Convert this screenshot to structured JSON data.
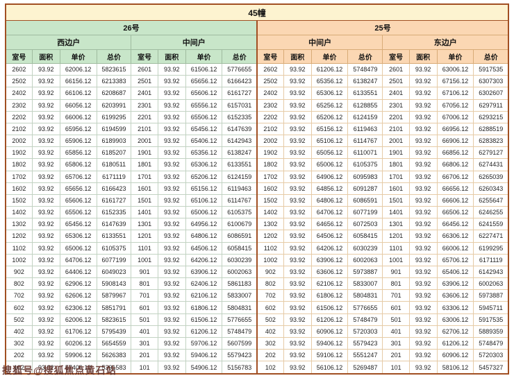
{
  "title": "45幢",
  "sections": [
    {
      "label": "26号",
      "units": [
        "西边户",
        "中间户"
      ]
    },
    {
      "label": "25号",
      "units": [
        "中间户",
        "东边户"
      ]
    }
  ],
  "columns": [
    "室号",
    "面积",
    "单价",
    "总价"
  ],
  "rows": [
    [
      "2602",
      "93.92",
      "62006.12",
      "5823615",
      "2601",
      "93.92",
      "61506.12",
      "5776655",
      "2602",
      "93.92",
      "61206.12",
      "5748479",
      "2601",
      "93.92",
      "63006.12",
      "5917535"
    ],
    [
      "2502",
      "93.92",
      "66156.12",
      "6213383",
      "2501",
      "93.92",
      "65656.12",
      "6166423",
      "2502",
      "93.92",
      "65356.12",
      "6138247",
      "2501",
      "93.92",
      "67156.12",
      "6307303"
    ],
    [
      "2402",
      "93.92",
      "66106.12",
      "6208687",
      "2401",
      "93.92",
      "65606.12",
      "6161727",
      "2402",
      "93.92",
      "65306.12",
      "6133551",
      "2401",
      "93.92",
      "67106.12",
      "6302607"
    ],
    [
      "2302",
      "93.92",
      "66056.12",
      "6203991",
      "2301",
      "93.92",
      "65556.12",
      "6157031",
      "2302",
      "93.92",
      "65256.12",
      "6128855",
      "2301",
      "93.92",
      "67056.12",
      "6297911"
    ],
    [
      "2202",
      "93.92",
      "66006.12",
      "6199295",
      "2201",
      "93.92",
      "65506.12",
      "6152335",
      "2202",
      "93.92",
      "65206.12",
      "6124159",
      "2201",
      "93.92",
      "67006.12",
      "6293215"
    ],
    [
      "2102",
      "93.92",
      "65956.12",
      "6194599",
      "2101",
      "93.92",
      "65456.12",
      "6147639",
      "2102",
      "93.92",
      "65156.12",
      "6119463",
      "2101",
      "93.92",
      "66956.12",
      "6288519"
    ],
    [
      "2002",
      "93.92",
      "65906.12",
      "6189903",
      "2001",
      "93.92",
      "65406.12",
      "6142943",
      "2002",
      "93.92",
      "65106.12",
      "6114767",
      "2001",
      "93.92",
      "66906.12",
      "6283823"
    ],
    [
      "1902",
      "93.92",
      "65856.12",
      "6185207",
      "1901",
      "93.92",
      "65356.12",
      "6138247",
      "1902",
      "93.92",
      "65056.12",
      "6110071",
      "1901",
      "93.92",
      "66856.12",
      "6279127"
    ],
    [
      "1802",
      "93.92",
      "65806.12",
      "6180511",
      "1801",
      "93.92",
      "65306.12",
      "6133551",
      "1802",
      "93.92",
      "65006.12",
      "6105375",
      "1801",
      "93.92",
      "66806.12",
      "6274431"
    ],
    [
      "1702",
      "93.92",
      "65706.12",
      "6171119",
      "1701",
      "93.92",
      "65206.12",
      "6124159",
      "1702",
      "93.92",
      "64906.12",
      "6095983",
      "1701",
      "93.92",
      "66706.12",
      "6265039"
    ],
    [
      "1602",
      "93.92",
      "65656.12",
      "6166423",
      "1601",
      "93.92",
      "65156.12",
      "6119463",
      "1602",
      "93.92",
      "64856.12",
      "6091287",
      "1601",
      "93.92",
      "66656.12",
      "6260343"
    ],
    [
      "1502",
      "93.92",
      "65606.12",
      "6161727",
      "1501",
      "93.92",
      "65106.12",
      "6114767",
      "1502",
      "93.92",
      "64806.12",
      "6086591",
      "1501",
      "93.92",
      "66606.12",
      "6255647"
    ],
    [
      "1402",
      "93.92",
      "65506.12",
      "6152335",
      "1401",
      "93.92",
      "65006.12",
      "6105375",
      "1402",
      "93.92",
      "64706.12",
      "6077199",
      "1401",
      "93.92",
      "66506.12",
      "6246255"
    ],
    [
      "1302",
      "93.92",
      "65456.12",
      "6147639",
      "1301",
      "93.92",
      "64956.12",
      "6100679",
      "1302",
      "93.92",
      "64656.12",
      "6072503",
      "1301",
      "93.92",
      "66456.12",
      "6241559"
    ],
    [
      "1202",
      "93.92",
      "65306.12",
      "6133551",
      "1201",
      "93.92",
      "64806.12",
      "6086591",
      "1202",
      "93.92",
      "64506.12",
      "6058415",
      "1201",
      "93.92",
      "66306.12",
      "6227471"
    ],
    [
      "1102",
      "93.92",
      "65006.12",
      "6105375",
      "1101",
      "93.92",
      "64506.12",
      "6058415",
      "1102",
      "93.92",
      "64206.12",
      "6030239",
      "1101",
      "93.92",
      "66006.12",
      "6199295"
    ],
    [
      "1002",
      "93.92",
      "64706.12",
      "6077199",
      "1001",
      "93.92",
      "64206.12",
      "6030239",
      "1002",
      "93.92",
      "63906.12",
      "6002063",
      "1001",
      "93.92",
      "65706.12",
      "6171119"
    ],
    [
      "902",
      "93.92",
      "64406.12",
      "6049023",
      "901",
      "93.92",
      "63906.12",
      "6002063",
      "902",
      "93.92",
      "63606.12",
      "5973887",
      "901",
      "93.92",
      "65406.12",
      "6142943"
    ],
    [
      "802",
      "93.92",
      "62906.12",
      "5908143",
      "801",
      "93.92",
      "62406.12",
      "5861183",
      "802",
      "93.92",
      "62106.12",
      "5833007",
      "801",
      "93.92",
      "63906.12",
      "6002063"
    ],
    [
      "702",
      "93.92",
      "62606.12",
      "5879967",
      "701",
      "93.92",
      "62106.12",
      "5833007",
      "702",
      "93.92",
      "61806.12",
      "5804831",
      "701",
      "93.92",
      "63606.12",
      "5973887"
    ],
    [
      "602",
      "93.92",
      "62306.12",
      "5851791",
      "601",
      "93.92",
      "61806.12",
      "5804831",
      "602",
      "93.92",
      "61506.12",
      "5776655",
      "601",
      "93.92",
      "63306.12",
      "5945711"
    ],
    [
      "502",
      "93.92",
      "62006.12",
      "5823615",
      "501",
      "93.92",
      "61506.12",
      "5776655",
      "502",
      "93.92",
      "61206.12",
      "5748479",
      "501",
      "93.92",
      "63006.12",
      "5917535"
    ],
    [
      "402",
      "93.92",
      "61706.12",
      "5795439",
      "401",
      "93.92",
      "61206.12",
      "5748479",
      "402",
      "93.92",
      "60906.12",
      "5720303",
      "401",
      "93.92",
      "62706.12",
      "5889359"
    ],
    [
      "302",
      "93.92",
      "60206.12",
      "5654559",
      "301",
      "93.92",
      "59706.12",
      "5607599",
      "302",
      "93.92",
      "59406.12",
      "5579423",
      "301",
      "93.92",
      "61206.12",
      "5748479"
    ],
    [
      "202",
      "93.92",
      "59906.12",
      "5626383",
      "201",
      "93.92",
      "59406.12",
      "5579423",
      "202",
      "93.92",
      "59106.12",
      "5551247",
      "201",
      "93.92",
      "60906.12",
      "5720303"
    ],
    [
      "102",
      "93.92",
      "57406.12",
      "5391583",
      "101",
      "93.92",
      "54906.12",
      "5156783",
      "102",
      "93.92",
      "56106.12",
      "5269487",
      "101",
      "93.92",
      "58106.12",
      "5457327"
    ]
  ],
  "watermark": "搜狐号@搜狐焦点黄石站",
  "colors": {
    "title_bg": "#fdf3d0",
    "green_bg": "#c8e6c9",
    "peach_bg": "#fbd7b3",
    "frame": "#a14f22"
  }
}
